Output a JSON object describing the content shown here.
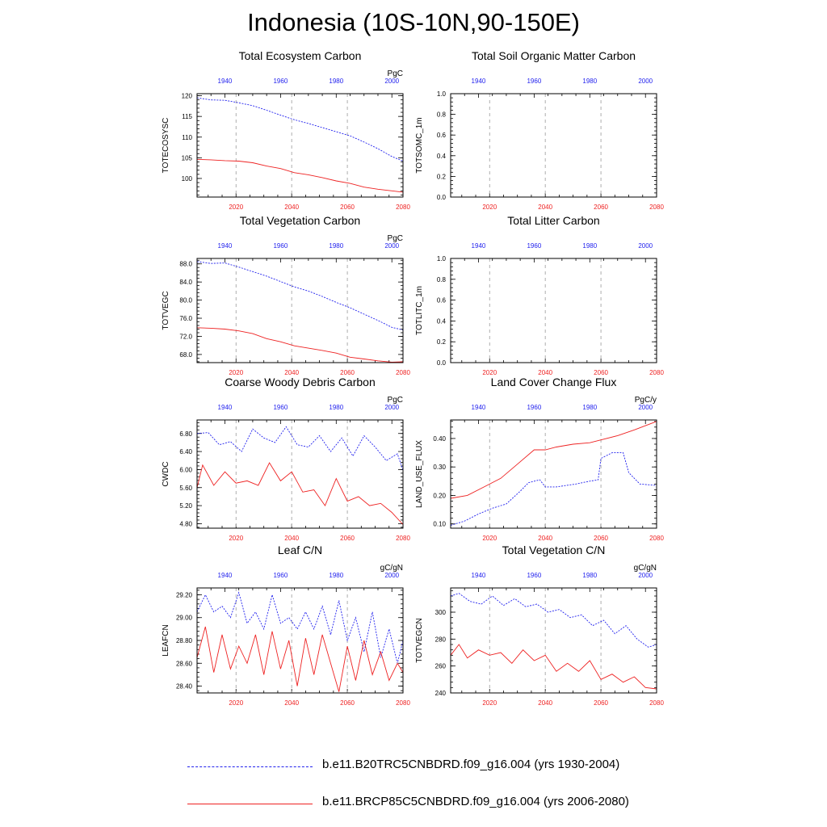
{
  "title": "Indonesia (10S-10N,90-150E)",
  "colors": {
    "control": "#2222ee",
    "scenario": "#ee2222",
    "grid": "#999999"
  },
  "legend": [
    {
      "label": "b.e11.B20TRC5CNBDRD.f09_g16.004 (yrs 1930-2004)",
      "color": "#2222ee",
      "style": "dashed"
    },
    {
      "label": "b.e11.BRCP85C5CNBDRD.f09_g16.004 (yrs 2006-2080)",
      "color": "#ee2222",
      "style": "solid"
    }
  ],
  "chart_data": [
    {
      "type": "line",
      "title": "Total Ecosystem Carbon",
      "units": "PgC",
      "ylabel": "TOTECOSYSC",
      "xlim_bottom": [
        2006,
        2080
      ],
      "xlim_top": [
        1930,
        2004
      ],
      "xticks_bottom": [
        "2020",
        "2040",
        "2060",
        "2080"
      ],
      "xticks_top": [
        "1940",
        "1960",
        "1980",
        "2000"
      ],
      "ylim": [
        95.5,
        120.5
      ],
      "yticks": [
        "100",
        "105",
        "110",
        "115",
        "120"
      ],
      "series": [
        {
          "name": "b.e11.B20TRC5CNBDRD.f09_g16.004",
          "axis": "top",
          "x": [
            1930,
            1935,
            1940,
            1945,
            1950,
            1955,
            1960,
            1965,
            1970,
            1975,
            1980,
            1985,
            1990,
            1995,
            2000,
            2004
          ],
          "y": [
            119.5,
            119.0,
            118.9,
            118.3,
            117.6,
            116.5,
            115.3,
            114.2,
            113.3,
            112.3,
            111.3,
            110.3,
            108.8,
            107.2,
            105.3,
            104.2
          ]
        },
        {
          "name": "b.e11.BRCP85C5CNBDRD.f09_g16.004",
          "axis": "bottom",
          "x": [
            2006,
            2011,
            2016,
            2021,
            2026,
            2031,
            2036,
            2041,
            2046,
            2051,
            2056,
            2061,
            2066,
            2071,
            2076,
            2080
          ],
          "y": [
            104.6,
            104.5,
            104.3,
            104.2,
            103.8,
            103.0,
            102.4,
            101.4,
            100.9,
            100.2,
            99.4,
            98.8,
            97.9,
            97.4,
            97.0,
            96.7
          ]
        }
      ]
    },
    {
      "type": "line",
      "title": "Total Soil Organic Matter Carbon",
      "units": "",
      "ylabel": "TOTSOMC_1m",
      "xlim_bottom": [
        2006,
        2080
      ],
      "xlim_top": [
        1930,
        2004
      ],
      "xticks_bottom": [
        "2020",
        "2040",
        "2060",
        "2080"
      ],
      "xticks_top": [
        "1940",
        "1960",
        "1980",
        "2000"
      ],
      "ylim": [
        0,
        1
      ],
      "yticks": [
        "0.0",
        "0.2",
        "0.4",
        "0.6",
        "0.8",
        "1.0"
      ],
      "series": []
    },
    {
      "type": "line",
      "title": "Total Vegetation Carbon",
      "units": "PgC",
      "ylabel": "TOTVEGC",
      "xlim_bottom": [
        2006,
        2080
      ],
      "xlim_top": [
        1930,
        2004
      ],
      "xticks_bottom": [
        "2020",
        "2040",
        "2060",
        "2080"
      ],
      "xticks_top": [
        "1940",
        "1960",
        "1980",
        "2000"
      ],
      "ylim": [
        66.2,
        89.2
      ],
      "yticks": [
        "68.0",
        "72.0",
        "76.0",
        "80.0",
        "84.0",
        "88.0"
      ],
      "series": [
        {
          "name": "b.e11.B20TRC5CNBDRD.f09_g16.004",
          "axis": "top",
          "x": [
            1930,
            1935,
            1940,
            1945,
            1950,
            1955,
            1960,
            1965,
            1970,
            1975,
            1980,
            1985,
            1990,
            1995,
            2000,
            2004
          ],
          "y": [
            88.5,
            88.1,
            88.2,
            87.3,
            86.3,
            85.3,
            84.1,
            82.9,
            82.0,
            80.8,
            79.5,
            78.3,
            76.9,
            75.5,
            74.0,
            73.4
          ]
        },
        {
          "name": "b.e11.BRCP85C5CNBDRD.f09_g16.004",
          "axis": "bottom",
          "x": [
            2006,
            2011,
            2016,
            2021,
            2026,
            2031,
            2036,
            2041,
            2046,
            2051,
            2056,
            2061,
            2066,
            2071,
            2076,
            2080
          ],
          "y": [
            73.9,
            73.8,
            73.6,
            73.2,
            72.6,
            71.5,
            70.8,
            69.9,
            69.4,
            68.9,
            68.3,
            67.4,
            67.0,
            66.6,
            66.3,
            66.4
          ]
        }
      ]
    },
    {
      "type": "line",
      "title": "Total Litter Carbon",
      "units": "",
      "ylabel": "TOTLITC_1m",
      "xlim_bottom": [
        2006,
        2080
      ],
      "xlim_top": [
        1930,
        2004
      ],
      "xticks_bottom": [
        "2020",
        "2040",
        "2060",
        "2080"
      ],
      "xticks_top": [
        "1940",
        "1960",
        "1980",
        "2000"
      ],
      "ylim": [
        0,
        1
      ],
      "yticks": [
        "0.0",
        "0.2",
        "0.4",
        "0.6",
        "0.8",
        "1.0"
      ],
      "series": []
    },
    {
      "type": "line",
      "title": "Coarse Woody Debris Carbon",
      "units": "PgC",
      "ylabel": "CWDC",
      "xlim_bottom": [
        2006,
        2080
      ],
      "xlim_top": [
        1930,
        2004
      ],
      "xticks_bottom": [
        "2020",
        "2040",
        "2060",
        "2080"
      ],
      "xticks_top": [
        "1940",
        "1960",
        "1980",
        "2000"
      ],
      "ylim": [
        4.7,
        7.1
      ],
      "yticks": [
        "4.80",
        "5.20",
        "5.60",
        "6.00",
        "6.40",
        "6.80"
      ],
      "series": [
        {
          "name": "b.e11.B20TRC5CNBDRD.f09_g16.004",
          "axis": "top",
          "x": [
            1930,
            1934,
            1938,
            1942,
            1946,
            1950,
            1954,
            1958,
            1962,
            1966,
            1970,
            1974,
            1978,
            1982,
            1986,
            1990,
            1994,
            1998,
            2002,
            2004
          ],
          "y": [
            6.8,
            6.82,
            6.55,
            6.62,
            6.4,
            6.9,
            6.7,
            6.6,
            6.95,
            6.55,
            6.5,
            6.75,
            6.4,
            6.7,
            6.3,
            6.75,
            6.5,
            6.2,
            6.35,
            5.98
          ]
        },
        {
          "name": "b.e11.BRCP85C5CNBDRD.f09_g16.004",
          "axis": "bottom",
          "x": [
            2006,
            2008,
            2012,
            2016,
            2020,
            2024,
            2028,
            2032,
            2036,
            2040,
            2044,
            2048,
            2052,
            2056,
            2060,
            2064,
            2068,
            2072,
            2076,
            2080
          ],
          "y": [
            5.6,
            6.1,
            5.65,
            5.95,
            5.7,
            5.75,
            5.65,
            6.15,
            5.75,
            5.95,
            5.5,
            5.55,
            5.2,
            5.8,
            5.3,
            5.4,
            5.2,
            5.25,
            5.05,
            4.78
          ]
        }
      ]
    },
    {
      "type": "line",
      "title": "Land Cover Change Flux",
      "units": "PgC/y",
      "ylabel": "LAND_USE_FLUX",
      "xlim_bottom": [
        2006,
        2080
      ],
      "xlim_top": [
        1930,
        2004
      ],
      "xticks_bottom": [
        "2020",
        "2040",
        "2060",
        "2080"
      ],
      "xticks_top": [
        "1940",
        "1960",
        "1980",
        "2000"
      ],
      "ylim": [
        0.085,
        0.465
      ],
      "yticks": [
        "0.10",
        "0.20",
        "0.30",
        "0.40"
      ],
      "series": [
        {
          "name": "b.e11.B20TRC5CNBDRD.f09_g16.004",
          "axis": "top",
          "x": [
            1930,
            1935,
            1940,
            1945,
            1950,
            1955,
            1958,
            1962,
            1964,
            1968,
            1975,
            1980,
            1983,
            1984,
            1988,
            1992,
            1994,
            1998,
            2004
          ],
          "y": [
            0.095,
            0.11,
            0.135,
            0.155,
            0.17,
            0.215,
            0.245,
            0.255,
            0.23,
            0.23,
            0.24,
            0.25,
            0.255,
            0.33,
            0.35,
            0.35,
            0.28,
            0.24,
            0.235
          ]
        },
        {
          "name": "b.e11.BRCP85C5CNBDRD.f09_g16.004",
          "axis": "bottom",
          "x": [
            2006,
            2012,
            2018,
            2024,
            2030,
            2036,
            2040,
            2044,
            2050,
            2056,
            2060,
            2066,
            2072,
            2080
          ],
          "y": [
            0.19,
            0.2,
            0.23,
            0.26,
            0.31,
            0.36,
            0.36,
            0.37,
            0.38,
            0.385,
            0.395,
            0.41,
            0.43,
            0.46
          ]
        }
      ]
    },
    {
      "type": "line",
      "title": "Leaf C/N",
      "units": "gC/gN",
      "ylabel": "LEAFCN",
      "xlim_bottom": [
        2006,
        2080
      ],
      "xlim_top": [
        1930,
        2004
      ],
      "xticks_bottom": [
        "2020",
        "2040",
        "2060",
        "2080"
      ],
      "xticks_top": [
        "1940",
        "1960",
        "1980",
        "2000"
      ],
      "ylim": [
        28.34,
        29.26
      ],
      "yticks": [
        "28.40",
        "28.60",
        "28.80",
        "29.00",
        "29.20"
      ],
      "series": [
        {
          "name": "b.e11.B20TRC5CNBDRD.f09_g16.004",
          "axis": "top",
          "x": [
            1930,
            1933,
            1936,
            1939,
            1942,
            1945,
            1948,
            1951,
            1954,
            1957,
            1960,
            1963,
            1966,
            1969,
            1972,
            1975,
            1978,
            1981,
            1984,
            1987,
            1990,
            1993,
            1996,
            1999,
            2002,
            2004
          ],
          "y": [
            29.05,
            29.2,
            29.05,
            29.1,
            29.0,
            29.22,
            28.95,
            29.05,
            28.9,
            29.2,
            28.95,
            29.0,
            28.9,
            29.05,
            28.9,
            29.1,
            28.85,
            29.15,
            28.8,
            29.0,
            28.7,
            29.05,
            28.65,
            28.9,
            28.6,
            28.8
          ]
        },
        {
          "name": "b.e11.BRCP85C5CNBDRD.f09_g16.004",
          "axis": "bottom",
          "x": [
            2006,
            2009,
            2012,
            2015,
            2018,
            2021,
            2024,
            2027,
            2030,
            2033,
            2036,
            2039,
            2042,
            2045,
            2048,
            2051,
            2054,
            2057,
            2060,
            2063,
            2066,
            2069,
            2072,
            2075,
            2078,
            2080
          ],
          "y": [
            28.65,
            28.92,
            28.52,
            28.85,
            28.55,
            28.75,
            28.6,
            28.85,
            28.5,
            28.88,
            28.55,
            28.8,
            28.4,
            28.82,
            28.5,
            28.85,
            28.6,
            28.35,
            28.75,
            28.45,
            28.8,
            28.5,
            28.7,
            28.45,
            28.6,
            28.52
          ]
        }
      ]
    },
    {
      "type": "line",
      "title": "Total Vegetation C/N",
      "units": "gC/gN",
      "ylabel": "TOTVEGCN",
      "xlim_bottom": [
        2006,
        2080
      ],
      "xlim_top": [
        1930,
        2004
      ],
      "xticks_bottom": [
        "2020",
        "2040",
        "2060",
        "2080"
      ],
      "xticks_top": [
        "1940",
        "1960",
        "1980",
        "2000"
      ],
      "ylim": [
        240,
        318
      ],
      "yticks": [
        "240",
        "260",
        "280",
        "300"
      ],
      "series": [
        {
          "name": "b.e11.B20TRC5CNBDRD.f09_g16.004",
          "axis": "top",
          "x": [
            1930,
            1933,
            1937,
            1941,
            1945,
            1949,
            1953,
            1957,
            1961,
            1965,
            1969,
            1973,
            1977,
            1981,
            1985,
            1989,
            1993,
            1997,
            2001,
            2004
          ],
          "y": [
            312,
            314,
            308,
            306,
            312,
            305,
            310,
            304,
            306,
            300,
            302,
            296,
            298,
            290,
            294,
            284,
            290,
            280,
            274,
            276
          ]
        },
        {
          "name": "b.e11.BRCP85C5CNBDRD.f09_g16.004",
          "axis": "bottom",
          "x": [
            2006,
            2009,
            2012,
            2016,
            2020,
            2024,
            2028,
            2032,
            2036,
            2040,
            2044,
            2048,
            2052,
            2056,
            2060,
            2064,
            2068,
            2072,
            2076,
            2080
          ],
          "y": [
            268,
            276,
            266,
            272,
            268,
            270,
            262,
            272,
            264,
            268,
            256,
            262,
            256,
            264,
            250,
            254,
            248,
            252,
            244,
            243
          ]
        }
      ]
    }
  ]
}
